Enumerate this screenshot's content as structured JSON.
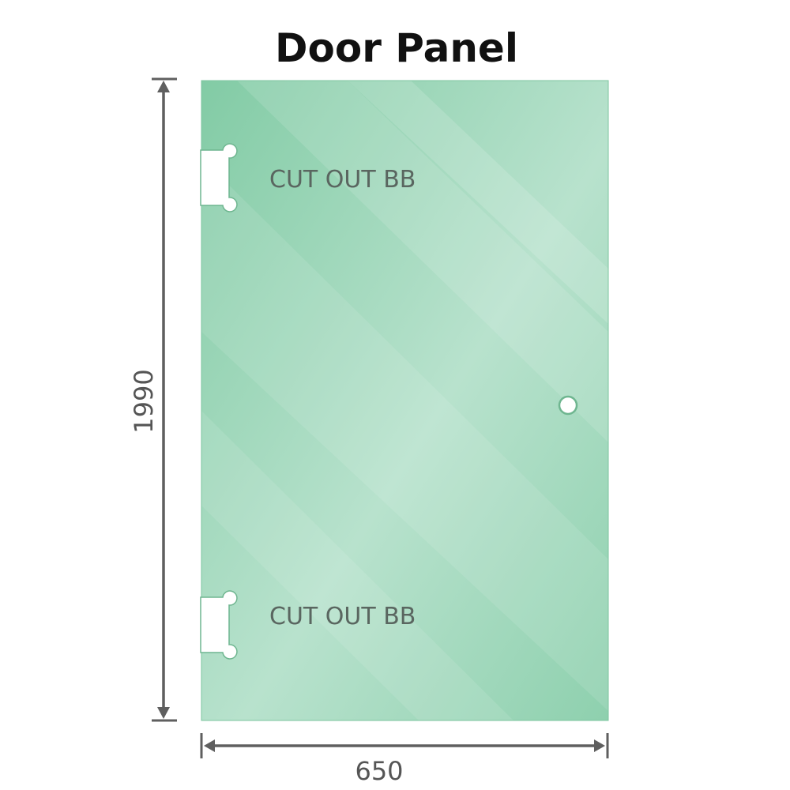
{
  "title": "Door Panel",
  "cutouts": [
    {
      "label": "CUT OUT BB"
    },
    {
      "label": "CUT OUT BB"
    }
  ],
  "dimensions": {
    "height": "1990",
    "width": "650"
  },
  "colors": {
    "glass_dark": "#7fc9a2",
    "glass_light": "#b9e3cf",
    "dimension_line": "#5f5f5f"
  }
}
